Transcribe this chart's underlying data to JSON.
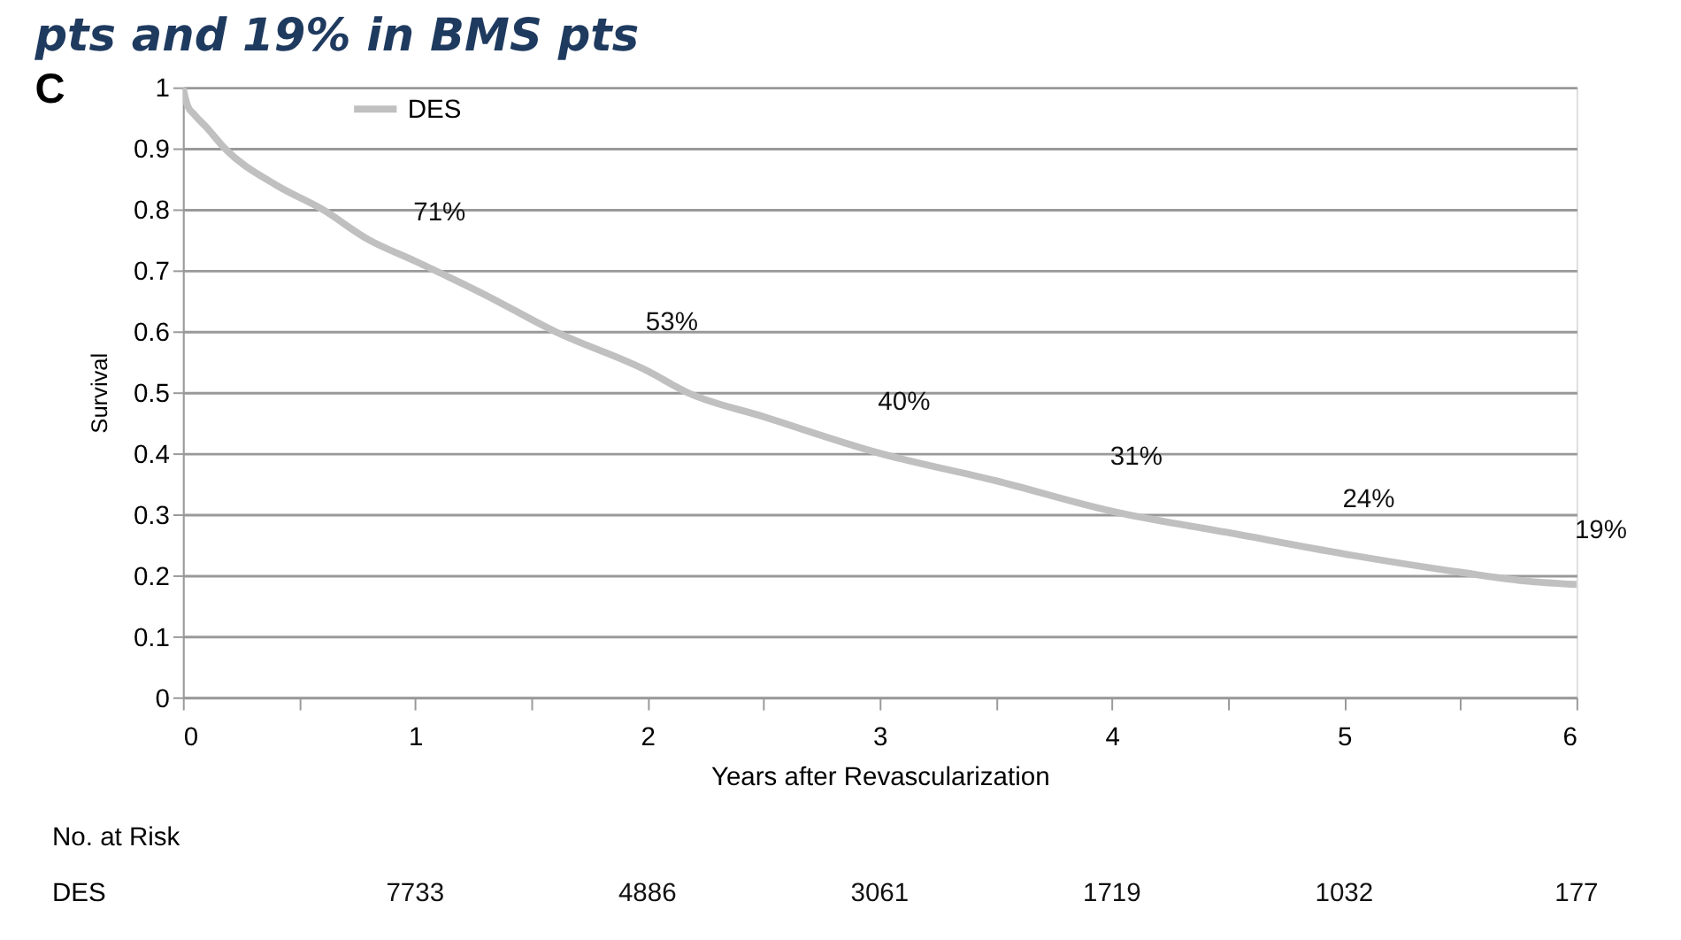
{
  "chart_data": {
    "type": "line",
    "title": "pts and 19% in BMS pts",
    "xlabel": "Years after Revascularization",
    "ylabel": "Survival",
    "xlim": [
      0,
      6
    ],
    "ylim": [
      0,
      1
    ],
    "xticks": [
      0,
      {
        "value": 0.5,
        "label": null
      },
      1,
      {
        "value": 1.5,
        "label": null
      },
      2,
      {
        "value": 2.5,
        "label": null
      },
      3,
      {
        "value": 3.5,
        "label": null
      },
      4,
      {
        "value": 4.5,
        "label": null
      },
      5,
      {
        "value": 5.5,
        "label": null
      },
      6
    ],
    "yticks": [
      0,
      0.1,
      0.2,
      0.3,
      0.4,
      0.5,
      0.6,
      0.7,
      0.8,
      0.9,
      1
    ],
    "grid": "y",
    "legend": "top",
    "marker": "none",
    "line_style": "solid",
    "series": [
      {
        "name": "DES",
        "color": "#c0c0c0",
        "x": [
          0,
          0.02,
          0.05,
          0.1,
          0.18,
          0.4,
          0.6,
          0.8,
          1,
          1.3,
          1.6,
          2,
          2.17,
          2.5,
          3,
          3.5,
          4,
          4.5,
          5,
          5.5,
          5.8,
          6
        ],
        "values": [
          1,
          0.97,
          0.955,
          0.935,
          0.9,
          0.84,
          0.8,
          0.75,
          0.715,
          0.66,
          0.6,
          0.535,
          0.5,
          0.46,
          0.4,
          0.355,
          0.305,
          0.27,
          0.235,
          0.205,
          0.19,
          0.185
        ]
      }
    ],
    "annotations": [
      "C",
      {
        "text": "71%",
        "x": 1,
        "y": 0.71
      },
      {
        "text": "53%",
        "x": 2,
        "y": 0.53
      },
      {
        "text": "40%",
        "x": 3,
        "y": 0.4
      },
      {
        "text": "31%",
        "x": 4,
        "y": 0.31
      },
      {
        "text": "24%",
        "x": 5,
        "y": 0.24
      },
      {
        "text": "19%",
        "x": 6,
        "y": 0.19
      },
      "No. at Risk",
      "DES",
      "7733",
      "4886",
      "3061",
      "1719",
      "1032",
      "177"
    ]
  }
}
